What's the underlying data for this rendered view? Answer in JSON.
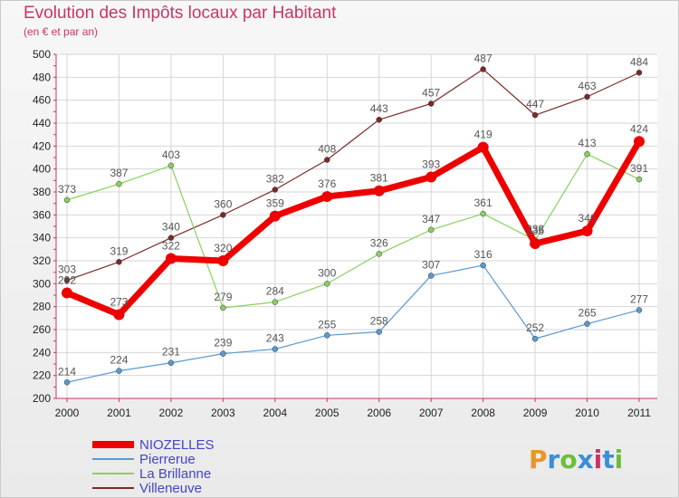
{
  "title": "Evolution des Impôts locaux par Habitant",
  "subtitle": "(en € et par an)",
  "logo": {
    "text": "Proxiti",
    "colors": [
      "#e8962a",
      "#3a8fd8",
      "#6bbf3a",
      "#3a8fd8",
      "#cc3366",
      "#3a8fd8",
      "#6bbf3a"
    ]
  },
  "chart_data": {
    "type": "line",
    "title": "Evolution des Impôts locaux par Habitant",
    "subtitle": "(en € et par an)",
    "xlabel": "",
    "ylabel": "",
    "ylim": [
      200,
      500
    ],
    "yticks": [
      200,
      220,
      240,
      260,
      280,
      300,
      320,
      340,
      360,
      380,
      400,
      420,
      440,
      460,
      480,
      500
    ],
    "categories": [
      "2000",
      "2001",
      "2002",
      "2003",
      "2004",
      "2005",
      "2006",
      "2007",
      "2008",
      "2009",
      "2010",
      "2011"
    ],
    "grid": true,
    "legend_position": "bottom-left",
    "series": [
      {
        "name": "Villeneuve",
        "color": "#7a2a2a",
        "width": 1.2,
        "values": [
          303,
          319,
          340,
          360,
          382,
          408,
          443,
          457,
          487,
          447,
          463,
          484
        ]
      },
      {
        "name": "La Brillanne",
        "color": "#88d060",
        "width": 1.2,
        "values": [
          373,
          387,
          403,
          279,
          284,
          300,
          326,
          347,
          361,
          338,
          413,
          391
        ]
      },
      {
        "name": "Pierrerue",
        "color": "#5a9ad0",
        "width": 1.2,
        "values": [
          214,
          224,
          231,
          239,
          243,
          255,
          258,
          307,
          316,
          252,
          265,
          277
        ]
      },
      {
        "name": "NIOZELLES",
        "color": "#ee0000",
        "width": 7,
        "values": [
          292,
          273,
          322,
          320,
          359,
          376,
          381,
          393,
          419,
          335,
          346,
          424
        ]
      }
    ]
  }
}
